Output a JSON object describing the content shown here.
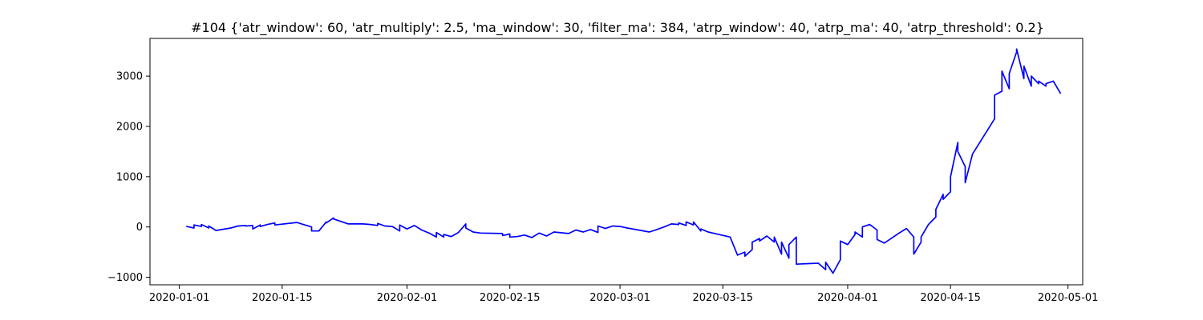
{
  "chart_data": {
    "type": "line",
    "title": "#104 {'atr_window': 60, 'atr_multiply': 2.5, 'ma_window': 30, 'filter_ma': 384, 'atrp_window': 40, 'atrp_ma': 40, 'atrp_threshold': 0.2}",
    "xlabel": "",
    "ylabel": "",
    "x_axis_type": "date",
    "xlim": [
      "2019-12-28",
      "2020-05-03"
    ],
    "ylim": [
      -1150,
      3750
    ],
    "x_ticks": [
      "2020-01-01",
      "2020-01-15",
      "2020-02-01",
      "2020-02-15",
      "2020-03-01",
      "2020-03-15",
      "2020-04-01",
      "2020-04-15",
      "2020-05-01"
    ],
    "y_ticks": [
      -1000,
      0,
      1000,
      2000,
      3000
    ],
    "y_tick_labels": [
      "−1000",
      "0",
      "1000",
      "2000",
      "3000"
    ],
    "grid": false,
    "legend": "none",
    "series": [
      {
        "color": "#0000ff",
        "points": [
          [
            "2020-01-02",
            0
          ],
          [
            "2020-01-02",
            10
          ],
          [
            "2020-01-03",
            -20
          ],
          [
            "2020-01-03",
            40
          ],
          [
            "2020-01-04",
            10
          ],
          [
            "2020-01-04",
            50
          ],
          [
            "2020-01-05",
            -20
          ],
          [
            "2020-01-05",
            20
          ],
          [
            "2020-01-06",
            -70
          ],
          [
            "2020-01-08",
            -20
          ],
          [
            "2020-01-09",
            20
          ],
          [
            "2020-01-10",
            30
          ],
          [
            "2020-01-10",
            20
          ],
          [
            "2020-01-11",
            30
          ],
          [
            "2020-01-11",
            -40
          ],
          [
            "2020-01-12",
            40
          ],
          [
            "2020-01-12",
            10
          ],
          [
            "2020-01-13",
            50
          ],
          [
            "2020-01-14",
            80
          ],
          [
            "2020-01-14",
            40
          ],
          [
            "2020-01-17",
            90
          ],
          [
            "2020-01-19",
            0
          ],
          [
            "2020-01-19",
            -80
          ],
          [
            "2020-01-20",
            -80
          ],
          [
            "2020-01-21",
            100
          ],
          [
            "2020-01-21",
            80
          ],
          [
            "2020-01-22",
            180
          ],
          [
            "2020-01-22",
            160
          ],
          [
            "2020-01-23",
            110
          ],
          [
            "2020-01-24",
            60
          ],
          [
            "2020-01-26",
            60
          ],
          [
            "2020-01-27",
            50
          ],
          [
            "2020-01-28",
            30
          ],
          [
            "2020-01-28",
            70
          ],
          [
            "2020-01-29",
            20
          ],
          [
            "2020-01-30",
            10
          ],
          [
            "2020-01-31",
            -80
          ],
          [
            "2020-01-31",
            40
          ],
          [
            "2020-02-01",
            -40
          ],
          [
            "2020-02-02",
            30
          ],
          [
            "2020-02-03",
            -60
          ],
          [
            "2020-02-04",
            -120
          ],
          [
            "2020-02-05",
            -200
          ],
          [
            "2020-02-05",
            -110
          ],
          [
            "2020-02-06",
            -200
          ],
          [
            "2020-02-06",
            -150
          ],
          [
            "2020-02-07",
            -190
          ],
          [
            "2020-02-08",
            -110
          ],
          [
            "2020-02-09",
            60
          ],
          [
            "2020-02-09",
            -20
          ],
          [
            "2020-02-10",
            -100
          ],
          [
            "2020-02-11",
            -120
          ],
          [
            "2020-02-14",
            -130
          ],
          [
            "2020-02-14",
            -170
          ],
          [
            "2020-02-15",
            -140
          ],
          [
            "2020-02-15",
            -200
          ],
          [
            "2020-02-16",
            -190
          ],
          [
            "2020-02-17",
            -160
          ],
          [
            "2020-02-18",
            -210
          ],
          [
            "2020-02-19",
            -120
          ],
          [
            "2020-02-20",
            -180
          ],
          [
            "2020-02-21",
            -100
          ],
          [
            "2020-02-23",
            -130
          ],
          [
            "2020-02-24",
            -60
          ],
          [
            "2020-02-25",
            -100
          ],
          [
            "2020-02-26",
            -50
          ],
          [
            "2020-02-27",
            -110
          ],
          [
            "2020-02-27",
            20
          ],
          [
            "2020-02-28",
            -30
          ],
          [
            "2020-02-29",
            20
          ],
          [
            "2020-03-01",
            10
          ],
          [
            "2020-03-02",
            -20
          ],
          [
            "2020-03-05",
            -100
          ],
          [
            "2020-03-06",
            -50
          ],
          [
            "2020-03-07",
            0
          ],
          [
            "2020-03-08",
            60
          ],
          [
            "2020-03-09",
            50
          ],
          [
            "2020-03-09",
            80
          ],
          [
            "2020-03-10",
            30
          ],
          [
            "2020-03-10",
            100
          ],
          [
            "2020-03-11",
            40
          ],
          [
            "2020-03-11",
            100
          ],
          [
            "2020-03-12",
            -80
          ],
          [
            "2020-03-12",
            -40
          ],
          [
            "2020-03-13",
            -100
          ],
          [
            "2020-03-16",
            -200
          ],
          [
            "2020-03-17",
            -560
          ],
          [
            "2020-03-18",
            -500
          ],
          [
            "2020-03-18",
            -580
          ],
          [
            "2020-03-19",
            -450
          ],
          [
            "2020-03-19",
            -300
          ],
          [
            "2020-03-20",
            -230
          ],
          [
            "2020-03-20",
            -280
          ],
          [
            "2020-03-21",
            -180
          ],
          [
            "2020-03-22",
            -300
          ],
          [
            "2020-03-22",
            -200
          ],
          [
            "2020-03-23",
            -540
          ],
          [
            "2020-03-23",
            -300
          ],
          [
            "2020-03-24",
            -620
          ],
          [
            "2020-03-24",
            -350
          ],
          [
            "2020-03-25",
            -200
          ],
          [
            "2020-03-25",
            -740
          ],
          [
            "2020-03-28",
            -720
          ],
          [
            "2020-03-29",
            -850
          ],
          [
            "2020-03-29",
            -700
          ],
          [
            "2020-03-30",
            -920
          ],
          [
            "2020-03-31",
            -650
          ],
          [
            "2020-03-31",
            -280
          ],
          [
            "2020-04-01",
            -350
          ],
          [
            "2020-04-02",
            -150
          ],
          [
            "2020-04-02",
            -100
          ],
          [
            "2020-04-03",
            -200
          ],
          [
            "2020-04-03",
            0
          ],
          [
            "2020-04-04",
            50
          ],
          [
            "2020-04-05",
            -60
          ],
          [
            "2020-04-05",
            -250
          ],
          [
            "2020-04-06",
            -320
          ],
          [
            "2020-04-08",
            -120
          ],
          [
            "2020-04-09",
            -30
          ],
          [
            "2020-04-10",
            -200
          ],
          [
            "2020-04-10",
            -540
          ],
          [
            "2020-04-11",
            -300
          ],
          [
            "2020-04-11",
            -200
          ],
          [
            "2020-04-12",
            50
          ],
          [
            "2020-04-13",
            200
          ],
          [
            "2020-04-13",
            350
          ],
          [
            "2020-04-14",
            650
          ],
          [
            "2020-04-14",
            550
          ],
          [
            "2020-04-15",
            700
          ],
          [
            "2020-04-15",
            1000
          ],
          [
            "2020-04-16",
            1680
          ],
          [
            "2020-04-16",
            1500
          ],
          [
            "2020-04-17",
            1200
          ],
          [
            "2020-04-17",
            880
          ],
          [
            "2020-04-18",
            1450
          ],
          [
            "2020-04-21",
            2150
          ],
          [
            "2020-04-21",
            2620
          ],
          [
            "2020-04-22",
            2700
          ],
          [
            "2020-04-22",
            3100
          ],
          [
            "2020-04-23",
            2750
          ],
          [
            "2020-04-23",
            3050
          ],
          [
            "2020-04-24",
            3480
          ],
          [
            "2020-04-24",
            3540
          ],
          [
            "2020-04-25",
            2950
          ],
          [
            "2020-04-25",
            3200
          ],
          [
            "2020-04-26",
            2800
          ],
          [
            "2020-04-26",
            3000
          ],
          [
            "2020-04-27",
            2850
          ],
          [
            "2020-04-27",
            2900
          ],
          [
            "2020-04-28",
            2800
          ],
          [
            "2020-04-28",
            2850
          ],
          [
            "2020-04-29",
            2900
          ],
          [
            "2020-04-30",
            2650
          ]
        ]
      }
    ]
  }
}
